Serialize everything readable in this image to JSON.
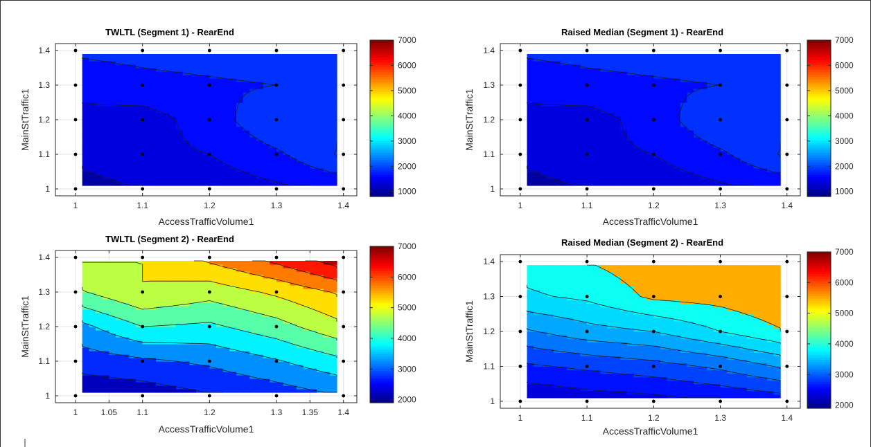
{
  "chart_data": [
    {
      "type": "contour",
      "title": "TWLTL (Segment 1) - RearEnd",
      "xlabel": "AccessTrafficVolume1",
      "ylabel": "MainStTraffic1",
      "xlim": [
        0.97,
        1.42
      ],
      "ylim": [
        0.98,
        1.42
      ],
      "xticks": [
        "1",
        "1.1",
        "1.2",
        "1.3",
        "1.4"
      ],
      "yticks": [
        "1",
        "1.1",
        "1.2",
        "1.3",
        "1.4"
      ],
      "colorbar": {
        "min": 800,
        "max": 7000,
        "ticks": [
          "1000",
          "2000",
          "3000",
          "4000",
          "5000",
          "6000",
          "7000"
        ]
      },
      "grid": true,
      "x": [
        1,
        1.1,
        1.2,
        1.3,
        1.4
      ],
      "y": [
        1,
        1.1,
        1.2,
        1.3,
        1.4
      ],
      "z": [
        [
          1150,
          1250,
          1350,
          1450,
          1550
        ],
        [
          1300,
          1450,
          1500,
          1700,
          2050
        ],
        [
          1450,
          1400,
          1600,
          2000,
          1900
        ],
        [
          1550,
          1650,
          1700,
          1750,
          1800
        ],
        [
          1800,
          1850,
          1900,
          1950,
          2000
        ]
      ],
      "levels": [
        1250,
        1500,
        1750,
        2000
      ]
    },
    {
      "type": "contour",
      "title": "Raised Median (Segment 1) - RearEnd",
      "xlabel": "AccessTrafficVolume1",
      "ylabel": "MainStTraffic1",
      "xlim": [
        0.97,
        1.42
      ],
      "ylim": [
        0.98,
        1.42
      ],
      "xticks": [
        "1",
        "1.1",
        "1.2",
        "1.3",
        "1.4"
      ],
      "yticks": [
        "1",
        "1.1",
        "1.2",
        "1.3",
        "1.4"
      ],
      "colorbar": {
        "min": 800,
        "max": 7000,
        "ticks": [
          "1000",
          "2000",
          "3000",
          "4000",
          "5000",
          "6000",
          "7000"
        ]
      },
      "grid": true,
      "x": [
        1,
        1.1,
        1.2,
        1.3,
        1.4
      ],
      "y": [
        1,
        1.1,
        1.2,
        1.3,
        1.4
      ],
      "z": [
        [
          1150,
          1250,
          1350,
          1450,
          1550
        ],
        [
          1300,
          1450,
          1500,
          1700,
          2050
        ],
        [
          1450,
          1400,
          1600,
          2000,
          1900
        ],
        [
          1550,
          1650,
          1700,
          1750,
          1800
        ],
        [
          1800,
          1850,
          1900,
          1950,
          2000
        ]
      ],
      "levels": [
        1250,
        1500,
        1750,
        2000
      ]
    },
    {
      "type": "contour",
      "title": "TWLTL (Segment 2) - RearEnd",
      "xlabel": "AccessTrafficVolume1",
      "ylabel": "MainStTraffic1",
      "xlim": [
        0.97,
        1.42
      ],
      "ylim": [
        0.98,
        1.42
      ],
      "xticks": [
        "1",
        "1.05",
        "1.1",
        "1.2",
        "1.3",
        "1.35",
        "1.4"
      ],
      "yticks": [
        "1",
        "1.1",
        "1.2",
        "1.3",
        "1.4"
      ],
      "colorbar": {
        "min": 1900,
        "max": 7000,
        "ticks": [
          "2000",
          "3000",
          "4000",
          "5000",
          "6000",
          "7000"
        ]
      },
      "grid": true,
      "x": [
        1,
        1.1,
        1.2,
        1.3,
        1.4
      ],
      "y": [
        1,
        1.1,
        1.2,
        1.3,
        1.4
      ],
      "z": [
        [
          2100,
          2200,
          2450,
          2700,
          3000
        ],
        [
          2700,
          2900,
          3100,
          3450,
          3900
        ],
        [
          3300,
          4000,
          3900,
          4300,
          4900
        ],
        [
          4400,
          5000,
          4700,
          5100,
          5600
        ],
        [
          5100,
          5000,
          5650,
          6200,
          6900
        ]
      ],
      "levels": [
        2500,
        3000,
        3500,
        4000,
        4500,
        5000,
        5500,
        6000,
        6500
      ]
    },
    {
      "type": "contour",
      "title": "Raised Median (Segment 2) - RearEnd",
      "xlabel": "AccessTrafficVolume1",
      "ylabel": "MainStTraffic1",
      "xlim": [
        0.97,
        1.42
      ],
      "ylim": [
        0.98,
        1.42
      ],
      "xticks": [
        "1",
        "1.1",
        "1.2",
        "1.3",
        "1.4"
      ],
      "yticks": [
        "1",
        "1.1",
        "1.2",
        "1.3",
        "1.4"
      ],
      "colorbar": {
        "min": 1900,
        "max": 7000,
        "ticks": [
          "2000",
          "3000",
          "4000",
          "5000",
          "6000",
          "7000"
        ]
      },
      "grid": true,
      "x": [
        1,
        1.1,
        1.2,
        1.3,
        1.4
      ],
      "y": [
        1,
        1.1,
        1.2,
        1.3,
        1.4
      ],
      "z": [
        [
          2250,
          2350,
          2400,
          2500,
          2600
        ],
        [
          2700,
          2800,
          2900,
          3050,
          3300
        ],
        [
          3200,
          3400,
          3500,
          3750,
          4000
        ],
        [
          3700,
          3800,
          4050,
          4100,
          4250
        ],
        [
          3850,
          4000,
          4150,
          4050,
          4200
        ]
      ],
      "levels": [
        2250,
        2500,
        2750,
        3000,
        3250,
        3500,
        3750,
        4000
      ]
    }
  ]
}
